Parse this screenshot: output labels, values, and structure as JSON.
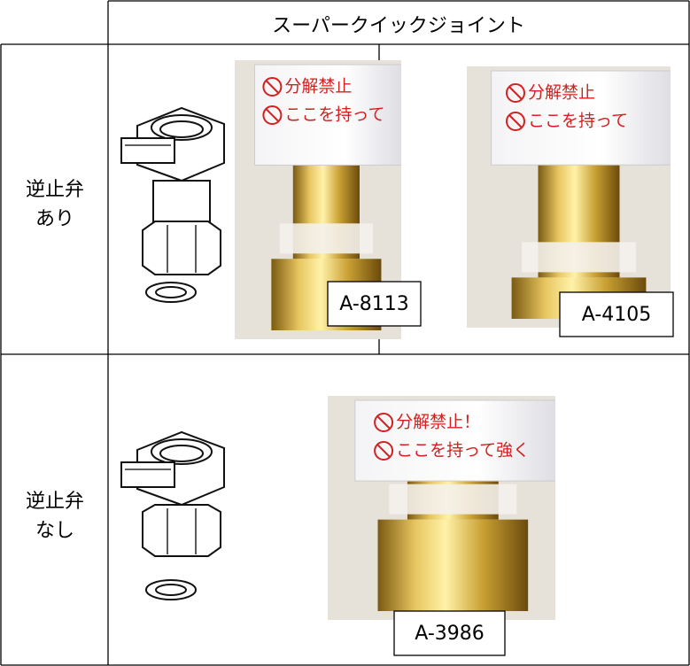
{
  "header": {
    "title": "スーパークイックジョイント"
  },
  "rows": [
    {
      "label": [
        "逆止弁",
        "あり"
      ],
      "products": [
        {
          "code": "A-8113",
          "warnings": [
            "分解禁止",
            "ここを持って"
          ]
        },
        {
          "code": "A-4105",
          "warnings": [
            "分解禁止",
            "ここを持って"
          ]
        }
      ]
    },
    {
      "label": [
        "逆止弁",
        "なし"
      ],
      "products": [
        {
          "code": "A-3986",
          "warnings": [
            "分解禁止！",
            "ここを持って強く"
          ]
        }
      ]
    }
  ]
}
